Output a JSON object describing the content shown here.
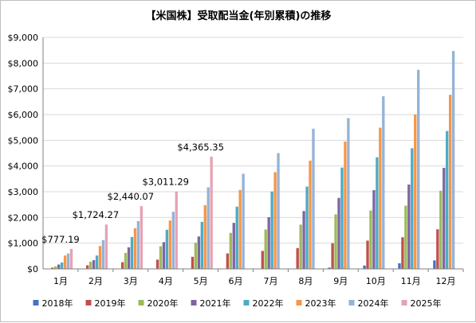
{
  "chart_data": {
    "type": "bar",
    "title": "【米国株】受取配当金(年別累積)の推移",
    "xlabel": "",
    "ylabel": "",
    "ylim": [
      0,
      9000
    ],
    "y_ticks": [
      0,
      1000,
      2000,
      3000,
      4000,
      5000,
      6000,
      7000,
      8000,
      9000
    ],
    "y_tick_labels": [
      "$0",
      "$1,000",
      "$2,000",
      "$3,000",
      "$4,000",
      "$5,000",
      "$6,000",
      "$7,000",
      "$8,000",
      "$9,000"
    ],
    "grid": true,
    "legend_position": "bottom",
    "categories": [
      "1月",
      "2月",
      "3月",
      "4月",
      "5月",
      "6月",
      "7月",
      "8月",
      "9月",
      "10月",
      "11月",
      "12月"
    ],
    "series": [
      {
        "name": "2018年",
        "color": "#4472C4",
        "values": [
          0,
          0,
          0,
          0,
          0,
          0,
          0,
          0,
          50,
          130,
          220,
          330
        ]
      },
      {
        "name": "2019年",
        "color": "#C0504D",
        "values": [
          50,
          140,
          260,
          360,
          470,
          600,
          700,
          810,
          1000,
          1100,
          1230,
          1540
        ]
      },
      {
        "name": "2020年",
        "color": "#9BBB59",
        "values": [
          100,
          280,
          620,
          880,
          1020,
          1400,
          1530,
          1720,
          2120,
          2270,
          2460,
          3040
        ]
      },
      {
        "name": "2021年",
        "color": "#8064A2",
        "values": [
          170,
          340,
          840,
          1040,
          1260,
          1790,
          2010,
          2250,
          2760,
          3060,
          3280,
          3930
        ]
      },
      {
        "name": "2022年",
        "color": "#4BACC6",
        "values": [
          250,
          520,
          1240,
          1520,
          1830,
          2420,
          3010,
          3200,
          3940,
          4340,
          4690,
          5360
        ]
      },
      {
        "name": "2023年",
        "color": "#F79646",
        "values": [
          520,
          890,
          1580,
          1880,
          2480,
          3070,
          3760,
          4210,
          4950,
          5490,
          6000,
          6770
        ]
      },
      {
        "name": "2024年",
        "color": "#95B3D7",
        "values": [
          600,
          1120,
          1860,
          2220,
          3170,
          3700,
          4500,
          5450,
          5860,
          6710,
          7740,
          8470
        ]
      },
      {
        "name": "2025年",
        "color": "#E6A3B4",
        "values": [
          777.19,
          1724.27,
          2440.07,
          3011.29,
          4365.35,
          null,
          null,
          null,
          null,
          null,
          null,
          null
        ]
      }
    ],
    "annotations": [
      {
        "text": "$777.19",
        "category": "1月",
        "value": 777.19
      },
      {
        "text": "$1,724.27",
        "category": "2月",
        "value": 1724.27
      },
      {
        "text": "$2,440.07",
        "category": "3月",
        "value": 2440.07
      },
      {
        "text": "$3,011.29",
        "category": "4月",
        "value": 3011.29
      },
      {
        "text": "$4,365.35",
        "category": "5月",
        "value": 4365.35
      }
    ]
  }
}
